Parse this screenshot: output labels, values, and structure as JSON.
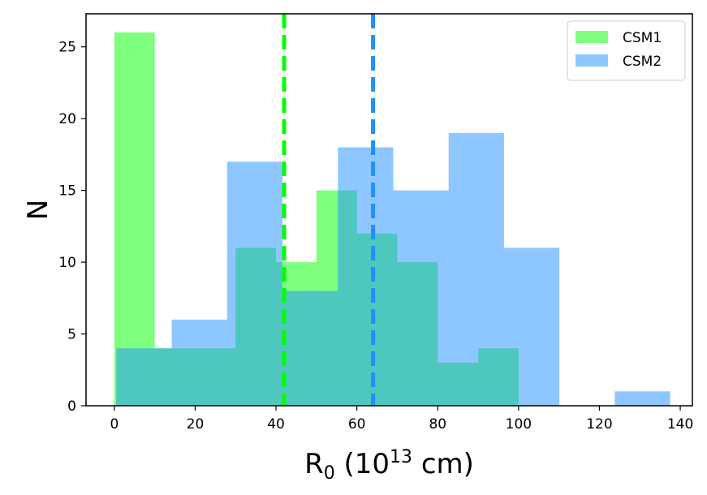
{
  "chart_data": {
    "type": "histogram",
    "xlim": [
      -7,
      143
    ],
    "ylim": [
      0,
      27.3
    ],
    "x_ticks": [
      "0",
      "20",
      "40",
      "60",
      "80",
      "100",
      "120",
      "140"
    ],
    "y_ticks": [
      "0",
      "5",
      "10",
      "15",
      "20",
      "25"
    ],
    "x_tick_values": [
      0,
      20,
      40,
      60,
      80,
      100,
      120,
      140
    ],
    "y_tick_values": [
      0,
      5,
      10,
      15,
      20,
      25
    ],
    "xlabel": {
      "base": "R",
      "sub": "0",
      "mid": " (10",
      "sup": "13",
      "end": " cm)"
    },
    "ylabel": "N",
    "legend_position": "upper right",
    "grid": false,
    "series": [
      {
        "name": "CSM1",
        "color": "#00ff00",
        "alpha": 0.5,
        "bin_edges": [
          0,
          10,
          20,
          30,
          40,
          50,
          60,
          70,
          80,
          90,
          100
        ],
        "counts": [
          26,
          4,
          4,
          11,
          10,
          15,
          12,
          10,
          3,
          4
        ],
        "mean": 42
      },
      {
        "name": "CSM2",
        "color": "#1e90ff",
        "alpha": 0.5,
        "bin_edges": [
          0.5,
          14.2,
          27.9,
          41.6,
          55.3,
          69.0,
          82.7,
          96.4,
          110.1,
          123.8,
          137.5
        ],
        "counts": [
          4,
          6,
          17,
          8,
          18,
          15,
          19,
          11,
          0,
          1
        ],
        "mean": 64
      }
    ]
  }
}
